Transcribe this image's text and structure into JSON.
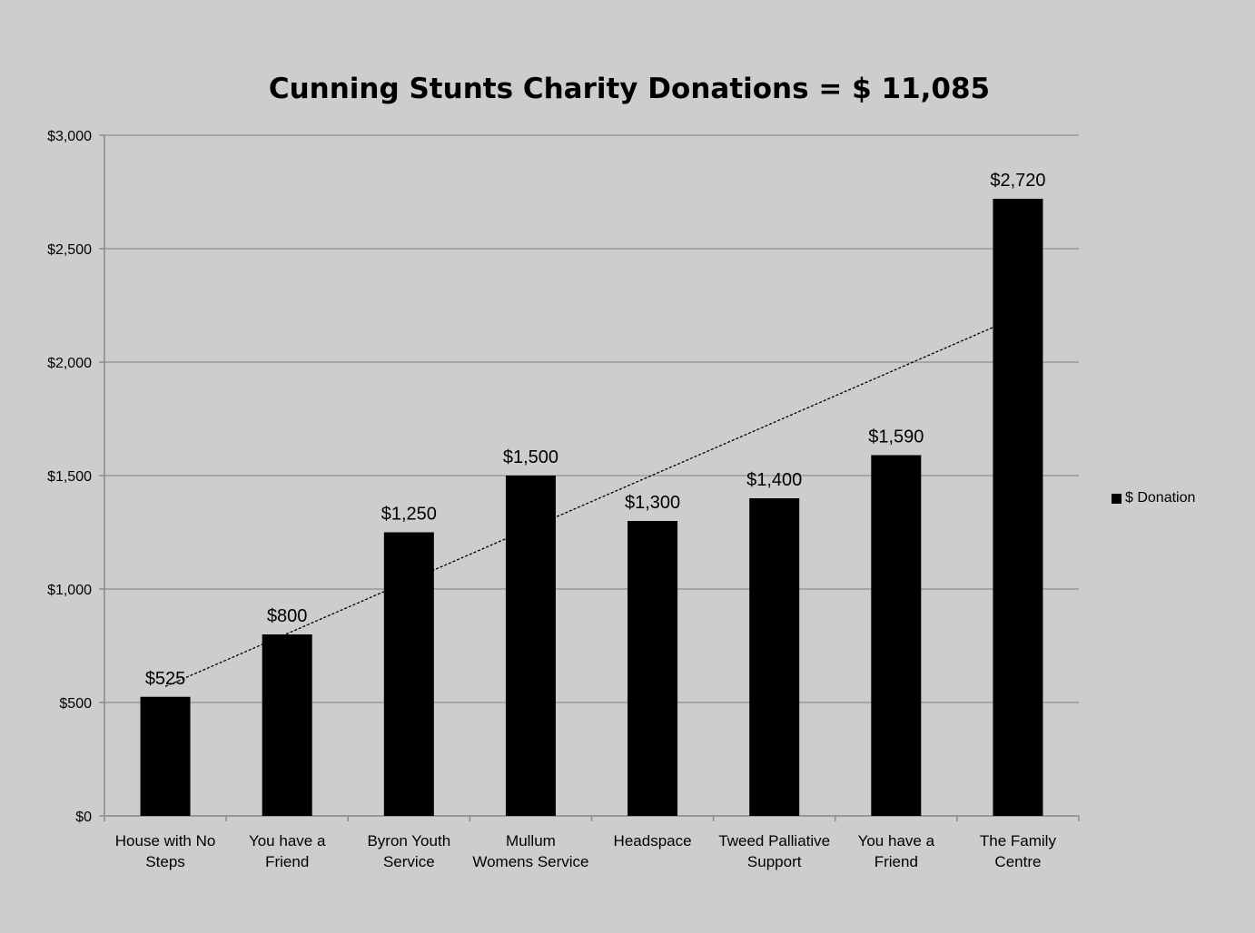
{
  "chart_data": {
    "type": "bar",
    "title": "Cunning Stunts Charity Donations = $ 11,085",
    "xlabel": "",
    "ylabel": "",
    "ylim": [
      0,
      3000
    ],
    "yticks": [
      0,
      500,
      1000,
      1500,
      2000,
      2500,
      3000
    ],
    "ytick_labels": [
      "$0",
      "$500",
      "$1,000",
      "$1,500",
      "$2,000",
      "$2,500",
      "$3,000"
    ],
    "categories": [
      [
        "House with No",
        "Steps"
      ],
      [
        "You have a",
        "Friend"
      ],
      [
        "Byron Youth",
        "Service"
      ],
      [
        "Mullum",
        "Womens Service"
      ],
      [
        "Headspace"
      ],
      [
        "Tweed Palliative",
        "Support"
      ],
      [
        "You have a",
        "Friend"
      ],
      [
        "The Family",
        "Centre"
      ]
    ],
    "series": [
      {
        "name": "$ Donation",
        "values": [
          525,
          800,
          1250,
          1500,
          1300,
          1400,
          1590,
          2720
        ],
        "data_labels": [
          "$525",
          "$800",
          "$1,250",
          "$1,500",
          "$1,300",
          "$1,400",
          "$1,590",
          "$2,720"
        ],
        "color": "#000000"
      }
    ],
    "trendline": {
      "type": "linear",
      "style": "dashed"
    },
    "grid": true,
    "legend_position": "right",
    "background": "#cdcdcd",
    "gridline_color": "#9a9a9a"
  }
}
